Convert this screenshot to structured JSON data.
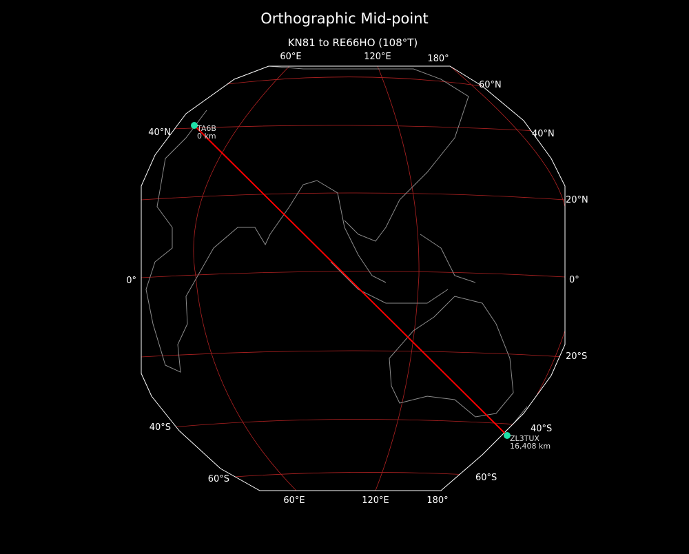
{
  "title": "Orthographic Mid-point",
  "subtitle": "KN81 to RE66HO (108°T)",
  "colors": {
    "background": "#000000",
    "frame": "#ffffff",
    "graticule": "#b22222",
    "coast": "#8c8c8c",
    "path": "#ff0000",
    "marker": "#1ee0a8"
  },
  "ticks": {
    "top": [
      "60°E",
      "120°E",
      "180°"
    ],
    "bottom": [
      "60°E",
      "120°E",
      "180°"
    ],
    "left": [
      "40°N",
      "0°",
      "40°S",
      "60°S"
    ],
    "right": [
      "60°N",
      "40°N",
      "20°N",
      "0°",
      "20°S",
      "40°S",
      "60°S"
    ]
  },
  "stations": [
    {
      "call": "TA6B",
      "distance": "0 km"
    },
    {
      "call": "ZL3TUX",
      "distance": "16,408 km"
    }
  ]
}
